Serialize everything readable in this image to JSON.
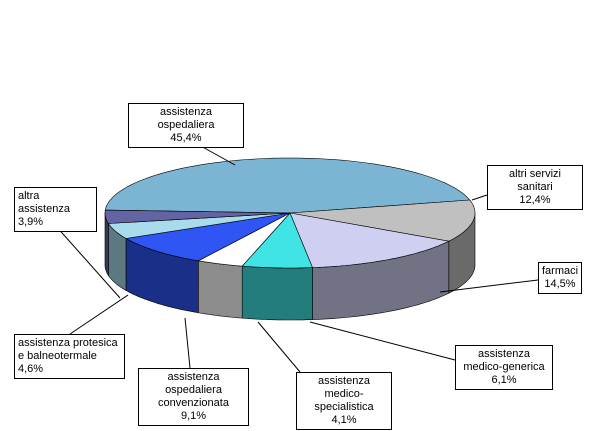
{
  "chart_data": {
    "type": "pie",
    "categories": [
      "assistenza ospedaliera",
      "altri servizi sanitari",
      "farmaci",
      "assistenza medico-generica",
      "assistenza medico-specialistica",
      "assistenza ospedaliera convenzionata",
      "assistenza protesica e balneotermale",
      "altra assistenza"
    ],
    "values": [
      45.4,
      12.4,
      14.5,
      6.1,
      4.1,
      9.1,
      4.6,
      3.9
    ],
    "value_labels": [
      "45,4%",
      "12,4%",
      "14,5%",
      "6,1%",
      "4,1%",
      "9,1%",
      "4,6%",
      "3,9%"
    ],
    "colors": [
      "#7cb4d4",
      "#c0c0c0",
      "#cfcff2",
      "#40e4e4",
      "#ffffff",
      "#3055f5",
      "#a8dcec",
      "#6464a4"
    ]
  }
}
